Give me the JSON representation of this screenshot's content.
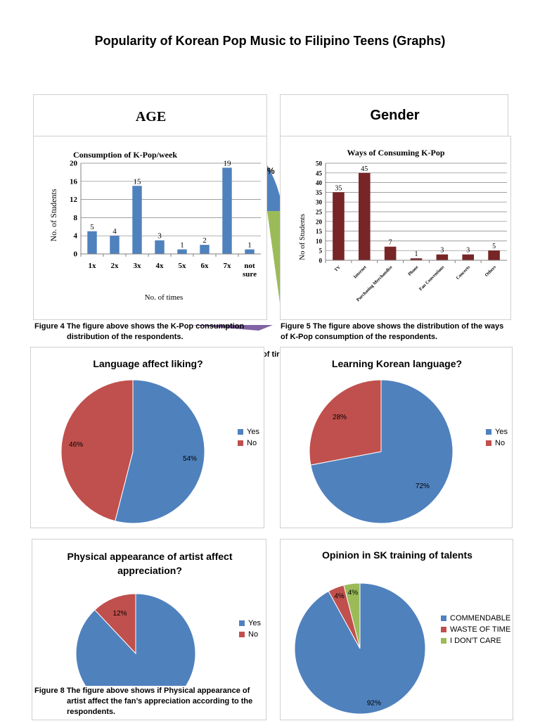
{
  "page": {
    "title": "Popularity of Korean Pop Music to Filipino Teens (Graphs)"
  },
  "partial_headers": {
    "age": "AGE",
    "gender": "Gender",
    "peek_percent": "%",
    "peek_text": "of tir"
  },
  "colors": {
    "blue": "#4f81bd",
    "red": "#c0504d",
    "green": "#9bbb59",
    "maroon": "#772526",
    "purple": "#8064a2"
  },
  "chart_data": [
    {
      "id": "fig4",
      "type": "bar",
      "title": "Consumption of K-Pop/week",
      "xlabel": "No. of times",
      "ylabel": "No. of Students",
      "categories": [
        "1x",
        "2x",
        "3x",
        "4x",
        "5x",
        "6x",
        "7x",
        "not sure"
      ],
      "values": [
        5,
        4,
        15,
        3,
        1,
        2,
        19,
        1
      ],
      "ylim": [
        0,
        20
      ],
      "yticks": [
        0,
        4,
        8,
        12,
        16,
        20
      ],
      "grid": true,
      "color": "#4f81bd"
    },
    {
      "id": "fig5",
      "type": "bar",
      "title": "Ways of Consuming K-Pop",
      "ylabel": "No of Students",
      "categories": [
        "TV",
        "Internet",
        "Purchasing Merchandise",
        "Phone",
        "Fan Conventions",
        "Concerts",
        "Others"
      ],
      "values": [
        35,
        45,
        7,
        1,
        3,
        3,
        5
      ],
      "ylim": [
        0,
        50
      ],
      "yticks": [
        0,
        5,
        10,
        15,
        20,
        25,
        30,
        35,
        40,
        45,
        50
      ],
      "grid": true,
      "color": "#772526"
    },
    {
      "id": "fig6",
      "type": "pie",
      "title": "Language affect liking?",
      "labels": [
        "Yes",
        "No"
      ],
      "values": [
        54,
        46
      ],
      "value_labels": [
        "54%",
        "46%"
      ],
      "colors": [
        "#4f81bd",
        "#c0504d"
      ],
      "legend": "right"
    },
    {
      "id": "fig7",
      "type": "pie",
      "title": "Learning Korean language?",
      "labels": [
        "Yes",
        "No"
      ],
      "values": [
        72,
        28
      ],
      "value_labels": [
        "72%",
        "28%"
      ],
      "colors": [
        "#4f81bd",
        "#c0504d"
      ],
      "legend": "right"
    },
    {
      "id": "fig8",
      "type": "pie",
      "title": "Physical appearance of artist affect appreciation?",
      "labels": [
        "Yes",
        "No"
      ],
      "values": [
        88,
        12
      ],
      "value_labels": [
        "",
        "12%"
      ],
      "colors": [
        "#4f81bd",
        "#c0504d"
      ],
      "legend": "right"
    },
    {
      "id": "fig9",
      "type": "pie",
      "title": "Opinion in SK training of talents",
      "labels": [
        "COMMENDABLE",
        "WASTE OF TIME",
        "I DON'T CARE"
      ],
      "values": [
        92,
        4,
        4
      ],
      "value_labels": [
        "92%",
        "4%",
        "4%"
      ],
      "colors": [
        "#4f81bd",
        "#c0504d",
        "#9bbb59"
      ],
      "legend": "right"
    }
  ],
  "captions": {
    "fig4": {
      "line1": "Figure 4 The figure above shows the K-Pop consumption",
      "line2": "distribution of the respondents."
    },
    "fig5": {
      "line1": "Figure 5 The figure above shows the distribution of the ways",
      "line2": "of K-Pop consumption of the respondents."
    },
    "fig8": {
      "line1": "Figure 8 The figure above shows if Physical appearance of",
      "line2": "artist affect the fan’s appreciation according to the",
      "line3": "respondents."
    }
  }
}
